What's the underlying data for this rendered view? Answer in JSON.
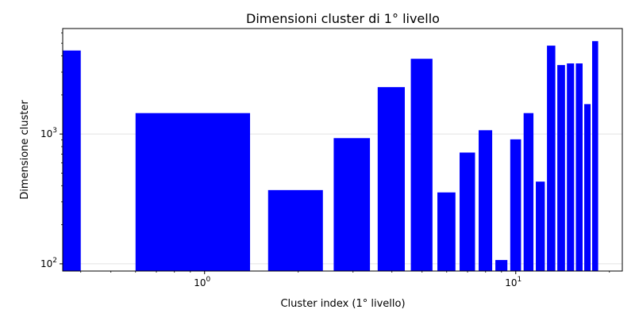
{
  "chart_data": {
    "type": "bar",
    "title": "Dimensioni cluster di 1° livello",
    "xlabel": "Cluster index (1° livello)",
    "ylabel": "Dimensione cluster",
    "x_scale": "log",
    "y_scale": "log",
    "xlim": [
      0.35,
      22
    ],
    "ylim": [
      88,
      6500
    ],
    "x_tick_labels": [
      "10^0",
      "10^1"
    ],
    "y_tick_labels": [
      "10^2",
      "10^3"
    ],
    "grid": "horizontal",
    "bar_color": "#0000ff",
    "x": [
      0,
      1,
      2,
      3,
      4,
      5,
      6,
      7,
      8,
      9,
      10,
      11,
      12,
      13,
      14,
      15,
      16,
      17,
      18
    ],
    "values": [
      4400,
      1450,
      370,
      930,
      2300,
      3800,
      355,
      720,
      1070,
      107,
      910,
      1450,
      430,
      4800,
      3400,
      3500,
      3500,
      1700,
      5200
    ]
  }
}
